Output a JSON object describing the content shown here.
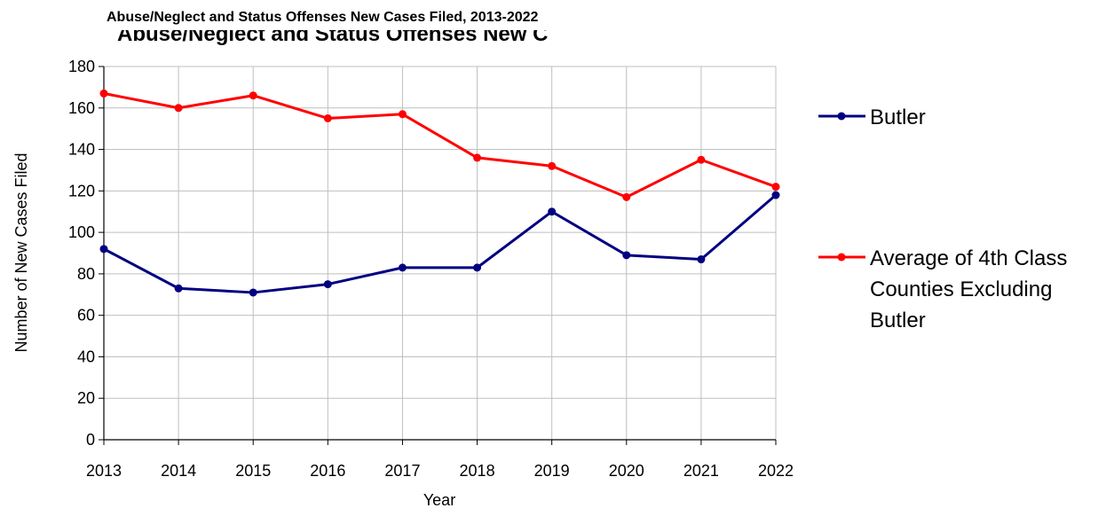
{
  "chart_data": {
    "type": "line",
    "title": "Abuse/Neglect and Status Offenses New Cases Filed, 2013-2022",
    "background_title_fragment": "Abuse/Neglect and Status Offenses New C",
    "xlabel": "Year",
    "ylabel": "Number of New Cases Filed",
    "categories": [
      "2013",
      "2014",
      "2015",
      "2016",
      "2017",
      "2018",
      "2019",
      "2020",
      "2021",
      "2022"
    ],
    "ylim": [
      0,
      180
    ],
    "yticks": [
      "0",
      "20",
      "40",
      "60",
      "80",
      "100",
      "120",
      "140",
      "160",
      "180"
    ],
    "grid": true,
    "legend_position": "right",
    "series": [
      {
        "name": "Butler",
        "legend_lines": [
          "Butler"
        ],
        "color": "#000080",
        "values": [
          92,
          73,
          71,
          75,
          83,
          83,
          110,
          89,
          87,
          118
        ]
      },
      {
        "name": "Average of 4th Class Counties Excluding Butler",
        "legend_lines": [
          "Average of 4th Class",
          "Counties Excluding",
          "Butler"
        ],
        "color": "#ff0000",
        "values": [
          167,
          160,
          166,
          155,
          157,
          136,
          132,
          117,
          135,
          122
        ]
      }
    ]
  }
}
